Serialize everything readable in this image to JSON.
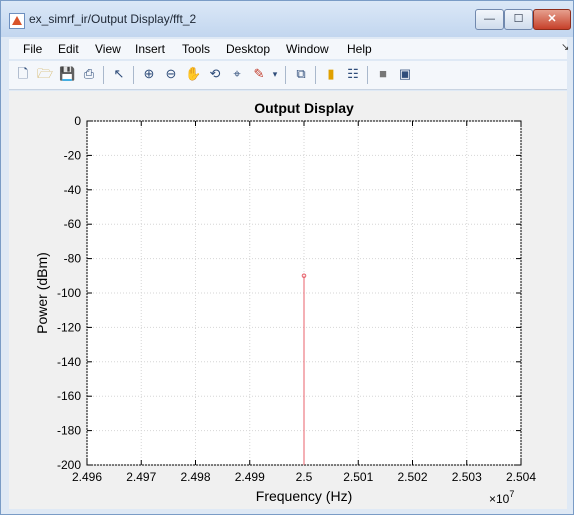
{
  "window": {
    "title": "ex_simrf_ir/Output Display/fft_2",
    "controls": {
      "minimize": "—",
      "maximize": "☐",
      "close": "✕"
    }
  },
  "menu": [
    "File",
    "Edit",
    "View",
    "Insert",
    "Tools",
    "Desktop",
    "Window",
    "Help"
  ],
  "toolbar": [
    "new-figure-icon",
    "open-file-icon",
    "save-icon",
    "print-icon",
    "pointer-icon",
    "zoom-in-icon",
    "zoom-out-icon",
    "pan-icon",
    "rotate-3d-icon",
    "data-cursor-icon",
    "brush-icon",
    "brush-dropdown-icon",
    "link-plot-icon",
    "colorbar-icon",
    "legend-icon",
    "hide-plot-tools-icon",
    "show-plot-tools-icon"
  ],
  "chart_data": {
    "type": "line",
    "title": "Output Display",
    "xlabel": "Frequency (Hz)",
    "ylabel": "Power (dBm)",
    "x_multiplier": "×10^7",
    "xlim": [
      2.496,
      2.504
    ],
    "ylim": [
      -200,
      0
    ],
    "x_ticks": [
      2.496,
      2.497,
      2.498,
      2.499,
      2.5,
      2.501,
      2.502,
      2.503,
      2.504
    ],
    "x_tick_labels": [
      "2.496",
      "2.497",
      "2.498",
      "2.499",
      "2.5",
      "2.501",
      "2.502",
      "2.503",
      "2.504"
    ],
    "y_ticks": [
      0,
      -20,
      -40,
      -60,
      -80,
      -100,
      -120,
      -140,
      -160,
      -180,
      -200
    ],
    "y_tick_labels": [
      "0",
      "-20",
      "-40",
      "-60",
      "-80",
      "-100",
      "-120",
      "-140",
      "-160",
      "-180",
      "-200"
    ],
    "grid": true,
    "series": [
      {
        "x": [
          2.5,
          2.5
        ],
        "y": [
          -200,
          -90
        ],
        "color": "#e8616b",
        "marker_point": [
          2.5,
          -90
        ]
      }
    ]
  }
}
